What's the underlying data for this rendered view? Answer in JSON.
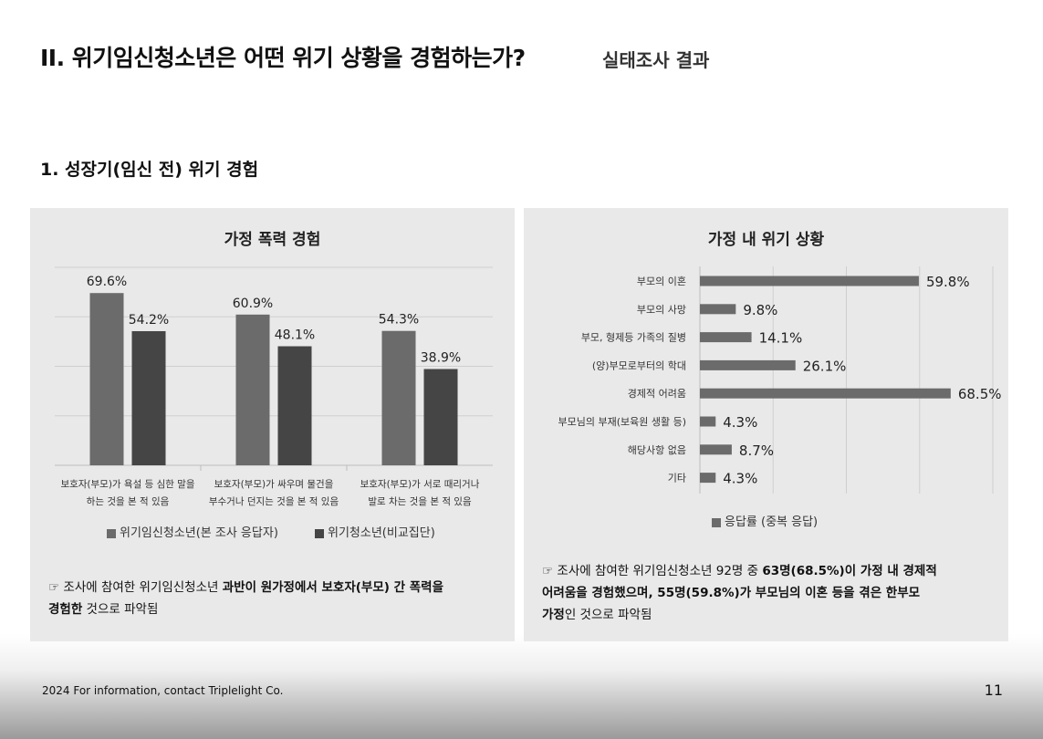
{
  "header": {
    "title": "II. 위기임신청소년은 어떤 위기 상황을 경험하는가?",
    "subtitle": "실태조사 결과"
  },
  "section_title": "1. 성장기(임신 전) 위기 경험",
  "colors": {
    "series_a": "#6b6b6b",
    "series_b": "#454545",
    "panel_bg": "#e9e9e9",
    "grid": "#cfcfcf"
  },
  "chart_data": [
    {
      "type": "bar",
      "title": "가정 폭력 경험",
      "categories": [
        [
          "보호자(부모)가 욕설 등 심한 말을",
          "하는 것을 본 적 있음"
        ],
        [
          "보호자(부모)가 싸우며 물건을",
          "부수거나 던지는 것을 본 적 있음"
        ],
        [
          "보호자(부모)가 서로 때리거나",
          "발로 차는 것을 본 적 있음"
        ]
      ],
      "series": [
        {
          "name": "위기임신청소년(본 조사 응답자)",
          "values": [
            69.6,
            60.9,
            54.3
          ],
          "labels": [
            "69.6%",
            "60.9%",
            "54.3%"
          ]
        },
        {
          "name": "위기청소년(비교집단)",
          "values": [
            54.2,
            48.1,
            38.9
          ],
          "labels": [
            "54.2%",
            "48.1%",
            "38.9%"
          ]
        }
      ],
      "ylim": [
        0,
        80
      ],
      "grid": true,
      "legend": "bottom"
    },
    {
      "type": "bar",
      "orientation": "horizontal",
      "title": "가정 내 위기 상황",
      "categories": [
        "부모의 이혼",
        "부모의 사망",
        "부모, 형제등 가족의 질병",
        "(양)부모로부터의 학대",
        "경제적 어려움",
        "부모님의 부재(보육원 생활 등)",
        "해당사항 없음",
        "기타"
      ],
      "series": [
        {
          "name": "응답률 (중복 응답)",
          "values": [
            59.8,
            9.8,
            14.1,
            26.1,
            68.5,
            4.3,
            8.7,
            4.3
          ],
          "labels": [
            "59.8%",
            "9.8%",
            "14.1%",
            "26.1%",
            "68.5%",
            "4.3%",
            "8.7%",
            "4.3%"
          ]
        }
      ],
      "xlim": [
        0,
        80
      ],
      "grid": true,
      "legend": "bottom"
    }
  ],
  "notes": {
    "left": {
      "icon": "☞",
      "plain1": " 조사에 참여한 위기임신청소년 ",
      "bold1": "과반이 원가정에서 보호자(부모) 간 폭력을",
      "bold2": "경험한",
      "plain2": " 것으로 파악됨"
    },
    "right": {
      "icon": "☞",
      "plain1": " 조사에 참여한 위기임신청소년 92명 중 ",
      "bold1": "63명(68.5%)이 가정 내 경제적",
      "bold2": "어려움을 경험했으며, 55명(59.8%)가 부모님의 이혼 등을 겪은 한부모",
      "bold3": "가정",
      "plain2": "인 것으로 파악됨"
    }
  },
  "footer": {
    "text": "2024 For information, contact Triplelight Co.",
    "page": "11"
  }
}
